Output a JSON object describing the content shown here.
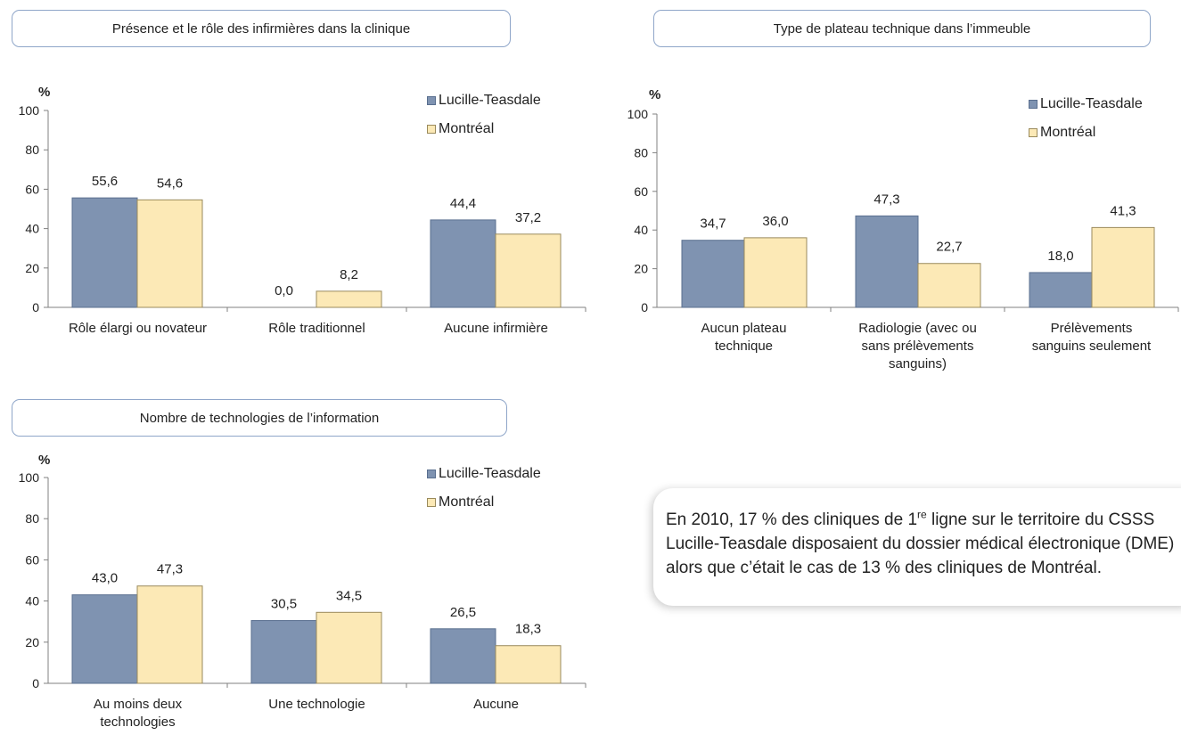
{
  "chart_data": [
    {
      "type": "bar",
      "title": "Présence et le rôle des infirmières dans la clinique",
      "ylabel": "%",
      "ylim": [
        0,
        100
      ],
      "yticks": [
        "0",
        "20",
        "40",
        "60",
        "80",
        "100"
      ],
      "categories": [
        "Rôle élargi ou novateur",
        "Rôle traditionnel",
        "Aucune infirmière"
      ],
      "series": [
        {
          "name": "Lucille-Teasdale",
          "values": [
            55.6,
            0.0,
            44.4
          ],
          "labels": [
            "55,6",
            "0,0",
            "44,4"
          ]
        },
        {
          "name": "Montréal",
          "values": [
            54.6,
            8.2,
            37.2
          ],
          "labels": [
            "54,6",
            "8,2",
            "37,2"
          ]
        }
      ]
    },
    {
      "type": "bar",
      "title": "Type de plateau technique dans l’immeuble",
      "ylabel": "%",
      "ylim": [
        0,
        100
      ],
      "yticks": [
        "0",
        "20",
        "40",
        "60",
        "80",
        "100"
      ],
      "categories": [
        "Aucun plateau technique",
        "Radiologie (avec ou sans prélèvements sanguins)",
        "Prélèvements sanguins seulement"
      ],
      "series": [
        {
          "name": "Lucille-Teasdale",
          "values": [
            34.7,
            47.3,
            18.0
          ],
          "labels": [
            "34,7",
            "47,3",
            "18,0"
          ]
        },
        {
          "name": "Montréal",
          "values": [
            36.0,
            22.7,
            41.3
          ],
          "labels": [
            "36,0",
            "22,7",
            "41,3"
          ]
        }
      ]
    },
    {
      "type": "bar",
      "title": "Nombre de technologies de l’information",
      "ylabel": "%",
      "ylim": [
        0,
        100
      ],
      "yticks": [
        "0",
        "20",
        "40",
        "60",
        "80",
        "100"
      ],
      "categories": [
        "Au moins deux technologies",
        "Une technologie",
        "Aucune"
      ],
      "series": [
        {
          "name": "Lucille-Teasdale",
          "values": [
            43.0,
            30.5,
            26.5
          ],
          "labels": [
            "43,0",
            "30,5",
            "26,5"
          ]
        },
        {
          "name": "Montréal",
          "values": [
            47.3,
            34.5,
            18.3
          ],
          "labels": [
            "47,3",
            "34,5",
            "18,3"
          ]
        }
      ]
    }
  ],
  "colors": {
    "lucille_teasdale": "#7f93b1",
    "montreal": "#fce9b6"
  },
  "callout": {
    "part1": "En 2010, 17 % des cliniques de 1",
    "sup": "re",
    "part2": " ligne sur le territoire du CSSS Lucille-Teasdale disposaient du dossier médical électronique (DME) alors que c’était le cas de 13 % des cliniques de Montréal."
  }
}
